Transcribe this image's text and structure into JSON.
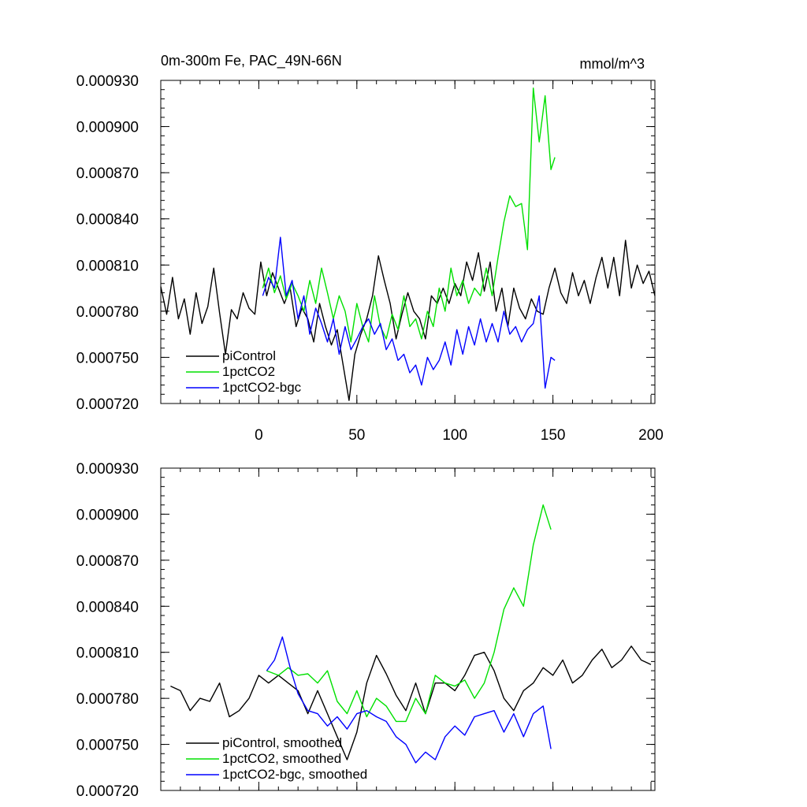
{
  "chart_data": [
    {
      "type": "line",
      "title": "0m-300m Fe, PAC_49N-66N",
      "units": "mmol/m^3",
      "xlim": [
        -50,
        202
      ],
      "ylim": [
        0.00072,
        0.00093
      ],
      "xticks": [
        0,
        50,
        100,
        150,
        200
      ],
      "xtick_labels": [
        "0",
        "50",
        "100",
        "150",
        "200"
      ],
      "yticks": [
        0.00072,
        0.00075,
        0.00078,
        0.00081,
        0.00084,
        0.00087,
        0.0009,
        0.00093
      ],
      "ytick_labels": [
        "0.000720",
        "0.000750",
        "0.000780",
        "0.000810",
        "0.000840",
        "0.000870",
        "0.000900",
        "0.000930"
      ],
      "legend_position": "bottom-left",
      "series": [
        {
          "name": "piControl",
          "color": "#000000",
          "x": [
            -50,
            -47,
            -44,
            -41,
            -38,
            -35,
            -32,
            -29,
            -26,
            -23,
            -20,
            -17,
            -14,
            -11,
            -8,
            -5,
            -2,
            1,
            4,
            7,
            10,
            13,
            16,
            19,
            22,
            25,
            28,
            31,
            34,
            37,
            40,
            43,
            46,
            49,
            52,
            55,
            58,
            61,
            64,
            67,
            70,
            73,
            76,
            79,
            82,
            85,
            88,
            91,
            94,
            97,
            100,
            103,
            106,
            109,
            112,
            115,
            118,
            121,
            124,
            127,
            130,
            133,
            136,
            139,
            142,
            145,
            148,
            151,
            154,
            157,
            160,
            163,
            166,
            169,
            172,
            175,
            178,
            181,
            184,
            187,
            190,
            193,
            196,
            199,
            202
          ],
          "y": [
            0.000796,
            0.000778,
            0.000802,
            0.000775,
            0.000788,
            0.000765,
            0.000792,
            0.000772,
            0.000783,
            0.000808,
            0.000779,
            0.000752,
            0.000781,
            0.000775,
            0.000792,
            0.000782,
            0.000778,
            0.000812,
            0.00079,
            0.000805,
            0.000795,
            0.000785,
            0.000795,
            0.00077,
            0.000782,
            0.000775,
            0.00076,
            0.000785,
            0.00077,
            0.000758,
            0.000768,
            0.000745,
            0.000722,
            0.000752,
            0.000765,
            0.000775,
            0.00079,
            0.000816,
            0.0008,
            0.000785,
            0.000762,
            0.000778,
            0.000792,
            0.00078,
            0.000775,
            0.000762,
            0.00079,
            0.000785,
            0.000795,
            0.000785,
            0.000798,
            0.00079,
            0.000812,
            0.0008,
            0.000818,
            0.000793,
            0.000812,
            0.00078,
            0.000795,
            0.00077,
            0.000795,
            0.000782,
            0.000775,
            0.000788,
            0.00078,
            0.000778,
            0.000795,
            0.000808,
            0.000792,
            0.000785,
            0.000805,
            0.00079,
            0.0008,
            0.000785,
            0.000802,
            0.000815,
            0.000795,
            0.000815,
            0.00079,
            0.000826,
            0.000795,
            0.00081,
            0.000798,
            0.000806,
            0.00079
          ]
        },
        {
          "name": "1pctCO2",
          "color": "#00e000",
          "x": [
            2,
            5,
            8,
            11,
            14,
            17,
            20,
            23,
            26,
            29,
            32,
            35,
            38,
            41,
            44,
            47,
            50,
            53,
            56,
            59,
            62,
            65,
            68,
            71,
            74,
            77,
            80,
            83,
            86,
            89,
            92,
            95,
            98,
            101,
            104,
            107,
            110,
            113,
            116,
            119,
            122,
            125,
            128,
            131,
            134,
            137,
            140,
            143,
            146,
            149,
            151
          ],
          "y": [
            0.000795,
            0.000808,
            0.000792,
            0.000803,
            0.000788,
            0.000798,
            0.00079,
            0.00078,
            0.0008,
            0.000785,
            0.000808,
            0.000792,
            0.000775,
            0.00079,
            0.00078,
            0.00076,
            0.000785,
            0.00077,
            0.00076,
            0.00079,
            0.00077,
            0.000762,
            0.000778,
            0.000768,
            0.00079,
            0.00077,
            0.000775,
            0.000762,
            0.00078,
            0.00077,
            0.000795,
            0.00078,
            0.000808,
            0.00079,
            0.0008,
            0.000785,
            0.000795,
            0.00079,
            0.000808,
            0.00079,
            0.000815,
            0.000838,
            0.000855,
            0.000848,
            0.00085,
            0.00082,
            0.000925,
            0.00089,
            0.00092,
            0.000872,
            0.00088
          ]
        },
        {
          "name": "1pctCO2-bgc",
          "color": "#0000ff",
          "x": [
            2,
            5,
            8,
            11,
            14,
            17,
            20,
            23,
            26,
            29,
            32,
            35,
            38,
            41,
            44,
            47,
            50,
            53,
            56,
            59,
            62,
            65,
            68,
            71,
            74,
            77,
            80,
            83,
            86,
            89,
            92,
            95,
            98,
            101,
            104,
            107,
            110,
            113,
            116,
            119,
            122,
            125,
            128,
            131,
            134,
            137,
            140,
            143,
            146,
            149,
            151
          ],
          "y": [
            0.00079,
            0.000802,
            0.000795,
            0.000828,
            0.00079,
            0.0008,
            0.000775,
            0.00079,
            0.000765,
            0.000782,
            0.000772,
            0.00076,
            0.000775,
            0.000752,
            0.00077,
            0.000755,
            0.000762,
            0.00077,
            0.000775,
            0.000765,
            0.000772,
            0.000755,
            0.000762,
            0.000748,
            0.000752,
            0.00074,
            0.000745,
            0.000732,
            0.00075,
            0.000742,
            0.000748,
            0.00076,
            0.000745,
            0.000768,
            0.000752,
            0.00077,
            0.000758,
            0.000775,
            0.00076,
            0.000772,
            0.00076,
            0.00078,
            0.000765,
            0.00077,
            0.00076,
            0.000768,
            0.000772,
            0.00079,
            0.00073,
            0.00075,
            0.000748
          ]
        }
      ]
    },
    {
      "type": "line",
      "xlim": [
        -50,
        202
      ],
      "ylim": [
        0.00072,
        0.00093
      ],
      "xticks": [
        0,
        50,
        100,
        150,
        200
      ],
      "yticks": [
        0.00072,
        0.00075,
        0.00078,
        0.00081,
        0.00084,
        0.00087,
        0.0009,
        0.00093
      ],
      "ytick_labels": [
        "0.000720",
        "0.000750",
        "0.000780",
        "0.000810",
        "0.000840",
        "0.000870",
        "0.000900",
        "0.000930"
      ],
      "legend_position": "bottom-left",
      "series": [
        {
          "name": "piControl, smoothed",
          "color": "#000000",
          "x": [
            -45,
            -40,
            -35,
            -30,
            -25,
            -20,
            -15,
            -10,
            -5,
            0,
            5,
            10,
            15,
            20,
            25,
            30,
            35,
            40,
            45,
            50,
            55,
            60,
            65,
            70,
            75,
            80,
            85,
            90,
            95,
            100,
            105,
            110,
            115,
            120,
            125,
            130,
            135,
            140,
            145,
            150,
            155,
            160,
            165,
            170,
            175,
            180,
            185,
            190,
            195,
            200
          ],
          "y": [
            0.000788,
            0.000785,
            0.000772,
            0.00078,
            0.000778,
            0.00079,
            0.000768,
            0.000772,
            0.00078,
            0.000795,
            0.00079,
            0.000795,
            0.00079,
            0.000785,
            0.00077,
            0.000785,
            0.00077,
            0.000755,
            0.00074,
            0.000758,
            0.00079,
            0.000808,
            0.000796,
            0.000782,
            0.000772,
            0.00079,
            0.00077,
            0.00079,
            0.00079,
            0.000785,
            0.000795,
            0.000808,
            0.00081,
            0.000798,
            0.00078,
            0.000772,
            0.000785,
            0.00079,
            0.0008,
            0.000795,
            0.000805,
            0.00079,
            0.000795,
            0.000805,
            0.000812,
            0.0008,
            0.000805,
            0.000814,
            0.000805,
            0.000802
          ]
        },
        {
          "name": "1pctCO2, smoothed",
          "color": "#00e000",
          "x": [
            4,
            10,
            15,
            20,
            25,
            30,
            35,
            40,
            45,
            50,
            55,
            60,
            65,
            70,
            75,
            80,
            85,
            90,
            95,
            100,
            105,
            110,
            115,
            120,
            125,
            130,
            135,
            140,
            145,
            149
          ],
          "y": [
            0.000798,
            0.000795,
            0.0008,
            0.000795,
            0.000796,
            0.00079,
            0.000798,
            0.000778,
            0.00077,
            0.000785,
            0.000768,
            0.00078,
            0.000775,
            0.000765,
            0.000765,
            0.00078,
            0.00077,
            0.000795,
            0.00079,
            0.000788,
            0.000792,
            0.00078,
            0.00079,
            0.00081,
            0.000838,
            0.000852,
            0.00084,
            0.00088,
            0.000906,
            0.00089
          ]
        },
        {
          "name": "1pctCO2-bgc, smoothed",
          "color": "#0000ff",
          "x": [
            4,
            8,
            12,
            16,
            20,
            25,
            30,
            35,
            40,
            45,
            50,
            55,
            60,
            65,
            70,
            75,
            80,
            85,
            90,
            95,
            100,
            105,
            110,
            115,
            120,
            125,
            130,
            135,
            140,
            145,
            149
          ],
          "y": [
            0.000798,
            0.000805,
            0.00082,
            0.0008,
            0.000783,
            0.000772,
            0.00077,
            0.000762,
            0.000768,
            0.00076,
            0.00077,
            0.000772,
            0.000768,
            0.000765,
            0.000755,
            0.00075,
            0.000738,
            0.000745,
            0.00074,
            0.000755,
            0.000762,
            0.000756,
            0.000768,
            0.00077,
            0.000772,
            0.000758,
            0.00077,
            0.000755,
            0.00077,
            0.000775,
            0.000747
          ]
        }
      ]
    }
  ]
}
